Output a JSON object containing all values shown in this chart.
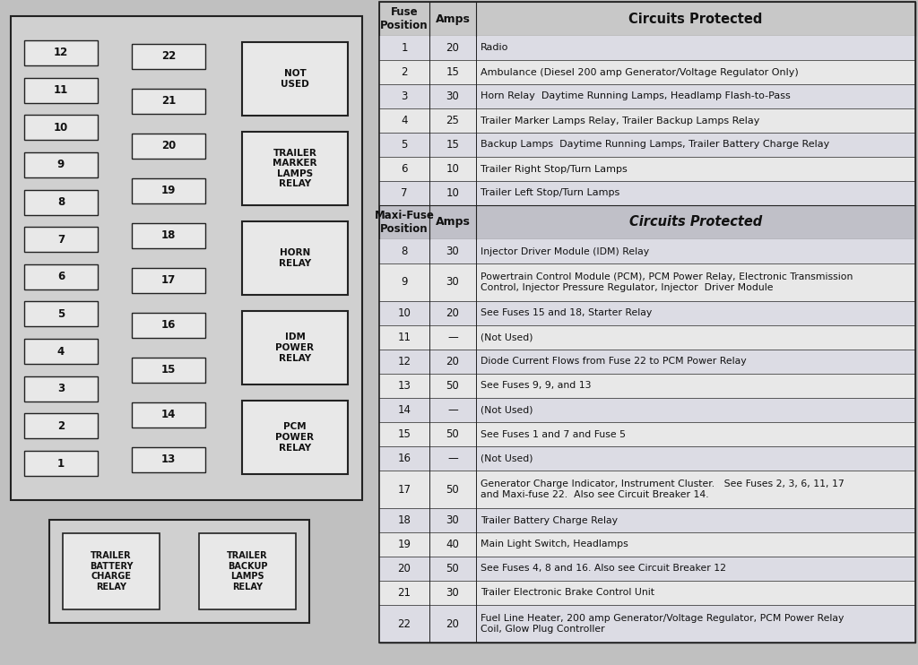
{
  "bg_color": "#c0c0c0",
  "panel_bg": "#d0d0d0",
  "box_bg": "#e8e8e8",
  "box_edge": "#222222",
  "text_color": "#111111",
  "left_fuses": [
    12,
    11,
    10,
    9,
    8,
    7,
    6,
    5,
    4,
    3,
    2,
    1
  ],
  "right_fuses": [
    22,
    21,
    20,
    19,
    18,
    17,
    16,
    15,
    14,
    13
  ],
  "relay_labels": [
    "NOT\nUSED",
    "TRAILER\nMARKER\nLAMPS\nRELAY",
    "HORN\nRELAY",
    "IDM\nPOWER\nRELAY",
    "PCM\nPOWER\nRELAY"
  ],
  "bottom_relays": [
    "TRAILER\nBATTERY\nCHARGE\nRELAY",
    "TRAILER\nBACKUP\nLAMPS\nRELAY"
  ],
  "fuse_rows": [
    [
      "1",
      "20",
      "Radio"
    ],
    [
      "2",
      "15",
      "Ambulance (Diesel 200 amp Generator/Voltage Regulator Only)"
    ],
    [
      "3",
      "30",
      "Horn Relay  Daytime Running Lamps, Headlamp Flash-to-Pass"
    ],
    [
      "4",
      "25",
      "Trailer Marker Lamps Relay, Trailer Backup Lamps Relay"
    ],
    [
      "5",
      "15",
      "Backup Lamps  Daytime Running Lamps, Trailer Battery Charge Relay"
    ],
    [
      "6",
      "10",
      "Trailer Right Stop/Turn Lamps"
    ],
    [
      "7",
      "10",
      "Trailer Left Stop/Turn Lamps"
    ]
  ],
  "maxi_rows": [
    [
      "8",
      "30",
      "Injector Driver Module (IDM) Relay"
    ],
    [
      "9",
      "30",
      "Powertrain Control Module (PCM), PCM Power Relay, Electronic Transmission\nControl, Injector Pressure Regulator, Injector  Driver Module"
    ],
    [
      "10",
      "20",
      "See Fuses 15 and 18, Starter Relay"
    ],
    [
      "11",
      "—",
      "(Not Used)"
    ],
    [
      "12",
      "20",
      "Diode Current Flows from Fuse 22 to PCM Power Relay"
    ],
    [
      "13",
      "50",
      "See Fuses 9, 9, and 13"
    ],
    [
      "14",
      "—",
      "(Not Used)"
    ],
    [
      "15",
      "50",
      "See Fuses 1 and 7 and Fuse 5"
    ],
    [
      "16",
      "—",
      "(Not Used)"
    ],
    [
      "17",
      "50",
      "Generator Charge Indicator, Instrument Cluster.   See Fuses 2, 3, 6, 11, 17\nand Maxi-fuse 22.  Also see Circuit Breaker 14."
    ],
    [
      "18",
      "30",
      "Trailer Battery Charge Relay"
    ],
    [
      "19",
      "40",
      "Main Light Switch, Headlamps"
    ],
    [
      "20",
      "50",
      "See Fuses 4, 8 and 16. Also see Circuit Breaker 12"
    ],
    [
      "21",
      "30",
      "Trailer Electronic Brake Control Unit"
    ],
    [
      "22",
      "20",
      "Fuel Line Heater, 200 amp Generator/Voltage Regulator, PCM Power Relay\nCoil, Glow Plug Controller"
    ]
  ]
}
